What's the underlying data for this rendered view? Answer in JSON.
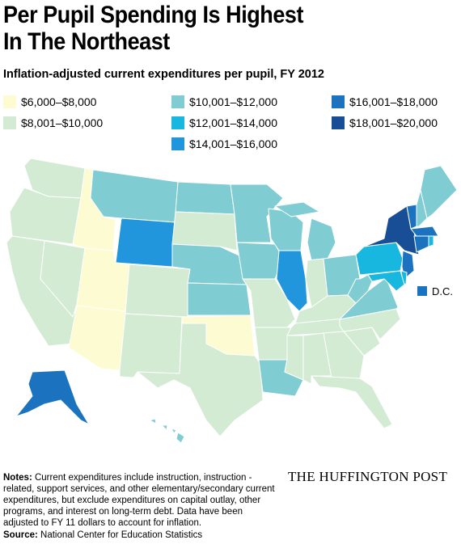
{
  "header": {
    "title_line1": "Per Pupil Spending Is Highest",
    "title_line2": "In The Northeast",
    "subtitle": "Inflation-adjusted current expenditures per pupil, FY 2012"
  },
  "map": {
    "legend": [
      {
        "label": "$6,000–$8,000",
        "color": "#fdfbd1"
      },
      {
        "label": "$8,001–$10,000",
        "color": "#d3ebd3"
      },
      {
        "label": "$10,001–$12,000",
        "color": "#7fcdd3"
      },
      {
        "label": "$12,001–$14,000",
        "color": "#17b7e0"
      },
      {
        "label": "$14,001–$16,000",
        "color": "#2196dc"
      },
      {
        "label": "$16,001–$18,000",
        "color": "#1b73bf"
      },
      {
        "label": "$18,001–$20,000",
        "color": "#184e95"
      }
    ],
    "regions": [
      1,
      1,
      1,
      1,
      0,
      2,
      4,
      0,
      0,
      1,
      1,
      2,
      1,
      2,
      2,
      0,
      1,
      2,
      2,
      1,
      1,
      2,
      2,
      4,
      2,
      1,
      2,
      1,
      1,
      1,
      1,
      1,
      1,
      1,
      1,
      2,
      2,
      3,
      6,
      5,
      2,
      2,
      5,
      5,
      3,
      5,
      3,
      3,
      5,
      2
    ],
    "dc_bin": 5,
    "dc_label": "D.C."
  },
  "footer": {
    "notes_label": "Notes:",
    "notes_text": "Current expenditures include instruction, instruction -related, support services, and other elementary/secondary current expenditures, but exclude expenditures on capital outlay, other programs, and interest on long-term debt. Data have been adjusted to FY 11 dollars to account for inflation.",
    "source_label": "Source:",
    "source_text": "National Center for Education Statistics",
    "logo": "THE HUFFINGTON POST"
  }
}
